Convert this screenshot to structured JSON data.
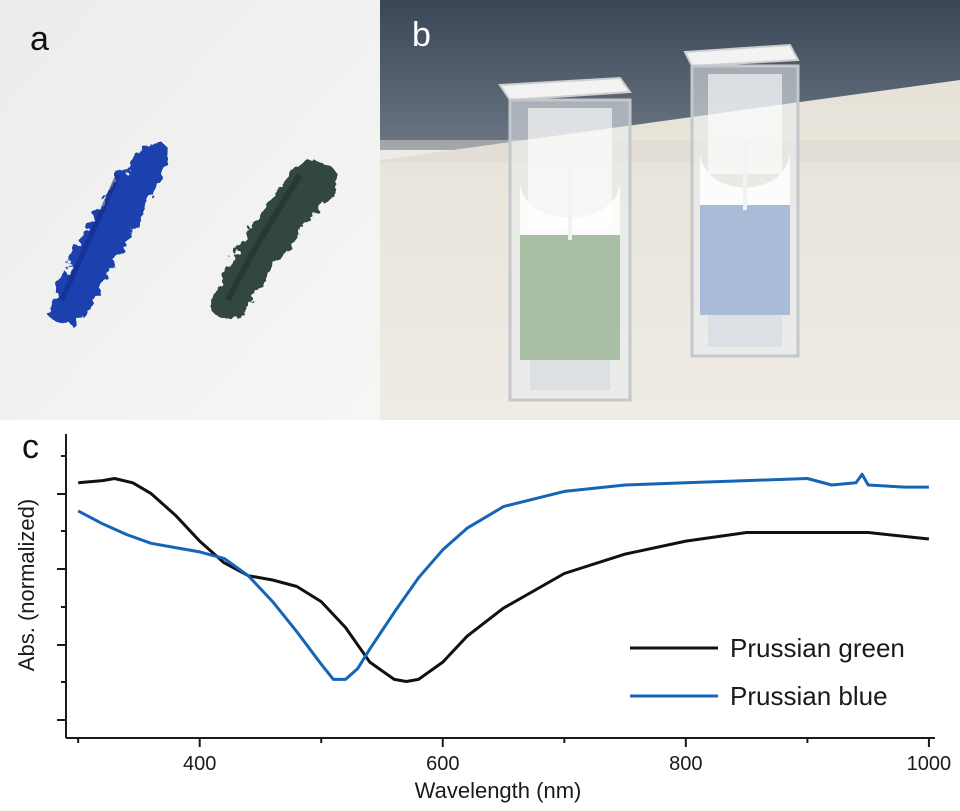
{
  "panels": {
    "a": {
      "label": "a"
    },
    "b": {
      "label": "b"
    },
    "c": {
      "label": "c"
    }
  },
  "colors": {
    "prussian_green": "#111111",
    "prussian_blue": "#1565b6",
    "blue_smear": "#1f3fae",
    "green_smear": "#33473f",
    "green_solution": "#a8bfa4",
    "blue_solution": "#a8bcd8"
  },
  "chart_data": {
    "type": "line",
    "xlabel": "Wavelength (nm)",
    "ylabel": "Abs. (normalized)",
    "xlim": [
      290,
      1005
    ],
    "ylim": [
      0,
      1
    ],
    "x_ticks": [
      400,
      600,
      800,
      1000
    ],
    "y_tick_labels_shown": false,
    "grid": false,
    "legend_position": "bottom-right",
    "series": [
      {
        "name": "Prussian green",
        "color": "#111111",
        "x": [
          300,
          320,
          330,
          345,
          360,
          380,
          400,
          420,
          440,
          460,
          480,
          500,
          520,
          540,
          560,
          570,
          580,
          600,
          620,
          650,
          700,
          750,
          800,
          850,
          900,
          950,
          1000
        ],
        "y": [
          0.95,
          0.96,
          0.97,
          0.95,
          0.9,
          0.8,
          0.68,
          0.58,
          0.52,
          0.5,
          0.47,
          0.4,
          0.28,
          0.12,
          0.04,
          0.03,
          0.04,
          0.12,
          0.24,
          0.37,
          0.53,
          0.62,
          0.68,
          0.72,
          0.72,
          0.72,
          0.69
        ]
      },
      {
        "name": "Prussian blue",
        "color": "#1565b6",
        "x": [
          300,
          320,
          340,
          360,
          380,
          400,
          420,
          440,
          460,
          480,
          500,
          510,
          520,
          530,
          540,
          560,
          580,
          600,
          620,
          650,
          700,
          750,
          800,
          850,
          900,
          920,
          940,
          945,
          950,
          980,
          1000
        ],
        "y": [
          0.82,
          0.76,
          0.71,
          0.67,
          0.65,
          0.63,
          0.6,
          0.52,
          0.4,
          0.26,
          0.11,
          0.04,
          0.04,
          0.09,
          0.18,
          0.35,
          0.51,
          0.64,
          0.74,
          0.84,
          0.91,
          0.94,
          0.95,
          0.96,
          0.97,
          0.94,
          0.95,
          0.99,
          0.94,
          0.93,
          0.93
        ]
      }
    ]
  }
}
